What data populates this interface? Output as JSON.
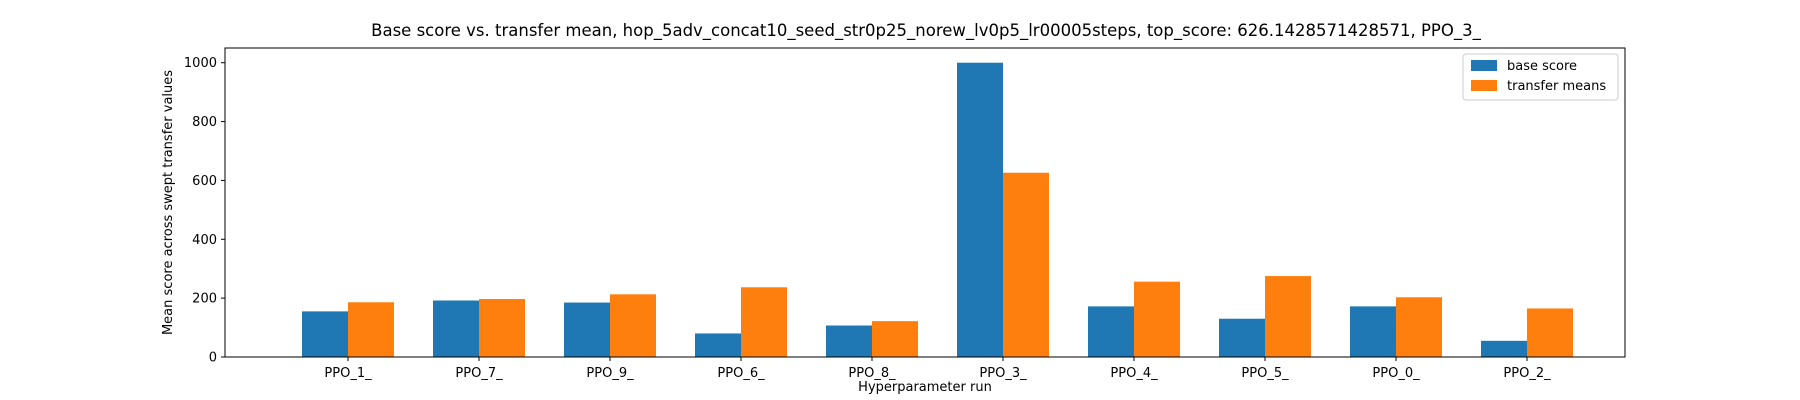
{
  "chart_data": {
    "type": "bar",
    "title": "Base score vs. transfer mean, hop_5adv_concat10_seed_str0p25_norew_lv0p5_lr00005steps, top_score: 626.1428571428571, PPO_3_",
    "xlabel": "Hyperparameter run",
    "ylabel": "Mean score across swept transfer values",
    "categories": [
      "PPO_1_",
      "PPO_7_",
      "PPO_9_",
      "PPO_6_",
      "PPO_8_",
      "PPO_3_",
      "PPO_4_",
      "PPO_5_",
      "PPO_0_",
      "PPO_2_"
    ],
    "series": [
      {
        "name": "base score",
        "color": "#1f77b4",
        "values": [
          155,
          192,
          185,
          80,
          107,
          1000,
          172,
          130,
          172,
          55
        ]
      },
      {
        "name": "transfer means",
        "color": "#ff7f0e",
        "values": [
          186,
          197,
          213,
          237,
          122,
          626.1428571428571,
          256,
          275,
          203,
          165
        ]
      }
    ],
    "ylim": [
      0,
      1050
    ],
    "yticks": [
      0,
      200,
      400,
      600,
      800,
      1000
    ],
    "legend_position": "top-right",
    "grid": false
  }
}
